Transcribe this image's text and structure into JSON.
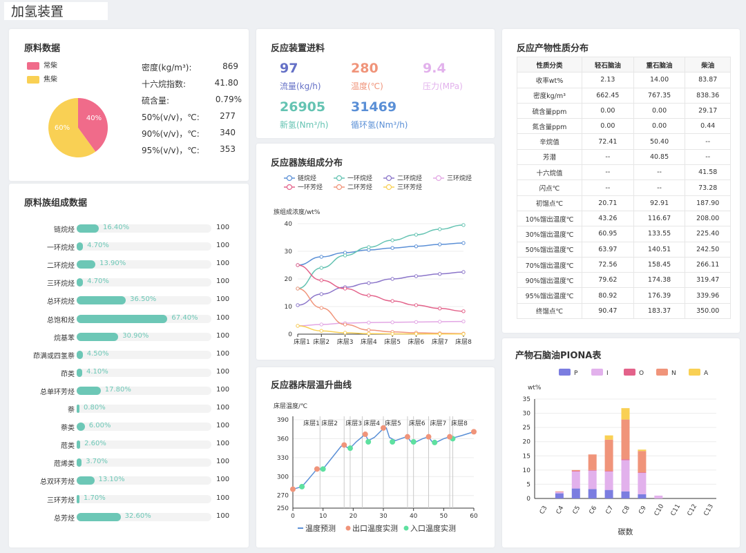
{
  "page_title": "加氢装置",
  "feed": {
    "title": "原料数据",
    "legend": [
      {
        "label": "常柴",
        "color": "#f06b8a"
      },
      {
        "label": "焦柴",
        "color": "#f9d054"
      }
    ],
    "pie": [
      {
        "label": "40%",
        "value": 40,
        "color": "#f06b8a"
      },
      {
        "label": "60%",
        "value": 60,
        "color": "#f9d054"
      }
    ],
    "props": [
      {
        "label": "密度(kg/m³):",
        "value": "869"
      },
      {
        "label": "十六烷指数:",
        "value": "41.80"
      },
      {
        "label": "硫含量:",
        "value": "0.79%"
      },
      {
        "label": "50%(v/v)，℃:",
        "value": "277"
      },
      {
        "label": "90%(v/v)，℃:",
        "value": "340"
      },
      {
        "label": "95%(v/v)，℃:",
        "value": "353"
      }
    ]
  },
  "composition": {
    "title": "原料族组成数据",
    "rows": [
      {
        "name": "链烷烃",
        "pct": 16.4,
        "pct_label": "16.40%",
        "max": "100"
      },
      {
        "name": "一环烷烃",
        "pct": 4.7,
        "pct_label": "4.70%",
        "max": "100"
      },
      {
        "name": "二环烷烃",
        "pct": 13.9,
        "pct_label": "13.90%",
        "max": "100"
      },
      {
        "name": "三环烷烃",
        "pct": 4.7,
        "pct_label": "4.70%",
        "max": "100"
      },
      {
        "name": "总环烷烃",
        "pct": 36.5,
        "pct_label": "36.50%",
        "max": "100"
      },
      {
        "name": "总饱和烃",
        "pct": 67.4,
        "pct_label": "67.40%",
        "max": "100"
      },
      {
        "name": "烷基苯",
        "pct": 30.9,
        "pct_label": "30.90%",
        "max": "100"
      },
      {
        "name": "茚满或四氢萘",
        "pct": 4.5,
        "pct_label": "4.50%",
        "max": "100"
      },
      {
        "name": "茚类",
        "pct": 4.1,
        "pct_label": "4.10%",
        "max": "100"
      },
      {
        "name": "总单环芳烃",
        "pct": 17.8,
        "pct_label": "17.80%",
        "max": "100"
      },
      {
        "name": "萘",
        "pct": 0.8,
        "pct_label": "0.80%",
        "max": "100"
      },
      {
        "name": "萘类",
        "pct": 6.0,
        "pct_label": "6.00%",
        "max": "100"
      },
      {
        "name": "苊类",
        "pct": 2.6,
        "pct_label": "2.60%",
        "max": "100"
      },
      {
        "name": "苊烯类",
        "pct": 3.7,
        "pct_label": "3.70%",
        "max": "100"
      },
      {
        "name": "总双环芳烃",
        "pct": 13.1,
        "pct_label": "13.10%",
        "max": "100"
      },
      {
        "name": "三环芳烃",
        "pct": 1.7,
        "pct_label": "1.70%",
        "max": "100"
      },
      {
        "name": "总芳烃",
        "pct": 32.6,
        "pct_label": "32.60%",
        "max": "100"
      }
    ]
  },
  "reactor_feed": {
    "title": "反应装置进料",
    "metrics": [
      {
        "value": "97",
        "label": "流量(kg/h)",
        "color": "#6470c6"
      },
      {
        "value": "280",
        "label": "温度(℃)",
        "color": "#f0947a"
      },
      {
        "value": "9.4",
        "label": "压力(MPa)",
        "color": "#e2b1ec"
      },
      {
        "value": "26905",
        "label": "新氢(Nm³/h)",
        "color": "#64c3b2"
      },
      {
        "value": "31469",
        "label": "循环氢(Nm³/h)",
        "color": "#5a8fd6"
      }
    ]
  },
  "product_props": {
    "title": "反应产物性质分布",
    "headers": [
      "性质分类",
      "轻石脑油",
      "重石脑油",
      "柴油"
    ],
    "rows": [
      [
        "收率wt%",
        "2.13",
        "14.00",
        "83.87"
      ],
      [
        "密度kg/m³",
        "662.45",
        "767.35",
        "838.36"
      ],
      [
        "硫含量ppm",
        "0.00",
        "0.00",
        "29.17"
      ],
      [
        "氮含量ppm",
        "0.00",
        "0.00",
        "0.44"
      ],
      [
        "辛烷值",
        "72.41",
        "50.40",
        "--"
      ],
      [
        "芳潜",
        "--",
        "40.85",
        "--"
      ],
      [
        "十六烷值",
        "--",
        "--",
        "41.58"
      ],
      [
        "闪点℃",
        "--",
        "--",
        "73.28"
      ],
      [
        "初馏点℃",
        "20.71",
        "92.91",
        "187.90"
      ],
      [
        "10%馏出温度℃",
        "43.26",
        "116.67",
        "208.00"
      ],
      [
        "30%馏出温度℃",
        "60.95",
        "133.55",
        "225.40"
      ],
      [
        "50%馏出温度℃",
        "63.97",
        "140.51",
        "242.50"
      ],
      [
        "70%馏出温度℃",
        "72.56",
        "158.45",
        "266.11"
      ],
      [
        "90%馏出温度℃",
        "79.62",
        "174.38",
        "319.47"
      ],
      [
        "95%馏出温度℃",
        "80.92",
        "176.39",
        "339.96"
      ],
      [
        "终馏点℃",
        "90.47",
        "183.37",
        "350.00"
      ]
    ]
  },
  "chart_data": [
    {
      "type": "line",
      "title": "反应器族组成分布",
      "ylabel": "族组成浓度/wt%",
      "ylim": [
        0,
        40
      ],
      "yticks": [
        "0",
        "10",
        "20",
        "30",
        "40"
      ],
      "categories": [
        "床层1",
        "床层2",
        "床层3",
        "床层4",
        "床层5",
        "床层6",
        "床层7",
        "床层8"
      ],
      "series": [
        {
          "name": "链烷烃",
          "color": "#5a8fd6",
          "values": [
            25,
            28,
            29.5,
            30.5,
            31.2,
            31.8,
            32.5,
            33
          ]
        },
        {
          "name": "一环烷烃",
          "color": "#64c3b2",
          "values": [
            16.5,
            24,
            28.5,
            31.5,
            34,
            36,
            38,
            39.5
          ]
        },
        {
          "name": "二环烷烃",
          "color": "#8a74c9",
          "values": [
            10.5,
            14.5,
            17,
            18.5,
            20,
            21,
            21.8,
            22.5
          ]
        },
        {
          "name": "三环烷烃",
          "color": "#e2a6e4",
          "values": [
            3,
            3.5,
            4,
            4.2,
            4.3,
            4.4,
            4.5,
            4.6
          ]
        },
        {
          "name": "一环芳烃",
          "color": "#e3628a",
          "values": [
            25,
            19.5,
            16.5,
            14,
            12,
            10.5,
            9.3,
            8.3
          ]
        },
        {
          "name": "二环芳烃",
          "color": "#f0947a",
          "values": [
            16.5,
            9.5,
            3.5,
            1.5,
            0.8,
            0.5,
            0.3,
            0.2
          ]
        },
        {
          "name": "三环芳烃",
          "color": "#f9d054",
          "values": [
            3,
            1.2,
            0.5,
            0.2,
            0.1,
            0.1,
            0.05,
            0.05
          ]
        }
      ]
    },
    {
      "type": "line",
      "title": "反应器床层温升曲线",
      "ylabel": "床层温度/℃",
      "ylim": [
        250,
        390
      ],
      "xlim": [
        0,
        60
      ],
      "yticks": [
        250,
        270,
        300,
        330,
        360,
        390
      ],
      "xticks": [
        0,
        10,
        20,
        30,
        40,
        50,
        60
      ],
      "beds": [
        {
          "label": "床层1",
          "x": 3
        },
        {
          "label": "床层2",
          "x": 9
        },
        {
          "label": "床层3",
          "x": 17
        },
        {
          "label": "床层4",
          "x": 23
        },
        {
          "label": "床层5",
          "x": 30
        },
        {
          "label": "床层6",
          "x": 38
        },
        {
          "label": "床层7",
          "x": 45
        },
        {
          "label": "床层8",
          "x": 52
        }
      ],
      "bed_lines": [
        9,
        17,
        19,
        23,
        30,
        38,
        40,
        45,
        52,
        53
      ],
      "series": [
        {
          "name": "温度预测",
          "color": "#5a8fd6",
          "points": [
            [
              0,
              280
            ],
            [
              3,
              284
            ],
            [
              5,
              295
            ],
            [
              8,
              312
            ],
            [
              10,
              312
            ],
            [
              13,
              330
            ],
            [
              16,
              348
            ],
            [
              17,
              350
            ],
            [
              18,
              346
            ],
            [
              19,
              345
            ],
            [
              21,
              355
            ],
            [
              23,
              363
            ],
            [
              24,
              367
            ],
            [
              25,
              357
            ],
            [
              27,
              362
            ],
            [
              30,
              376
            ],
            [
              31,
              377
            ],
            [
              32,
              362
            ],
            [
              34,
              357
            ],
            [
              37,
              362
            ],
            [
              38,
              363
            ],
            [
              39,
              356
            ],
            [
              40,
              353
            ],
            [
              43,
              360
            ],
            [
              45,
              363
            ],
            [
              46,
              356
            ],
            [
              47,
              353
            ],
            [
              50,
              360
            ],
            [
              52,
              363
            ],
            [
              53,
              361
            ],
            [
              56,
              365
            ],
            [
              60,
              371
            ]
          ]
        },
        {
          "name": "出口温度实测",
          "color": "#f0947a",
          "points": [
            [
              0,
              280
            ],
            [
              8,
              312
            ],
            [
              17,
              350
            ],
            [
              24,
              367
            ],
            [
              30,
              377
            ],
            [
              38,
              363
            ],
            [
              45,
              363
            ],
            [
              52,
              363
            ],
            [
              60,
              371
            ]
          ]
        },
        {
          "name": "入口温度实测",
          "color": "#5ee0a0",
          "points": [
            [
              3,
              284
            ],
            [
              10,
              312
            ],
            [
              19,
              345
            ],
            [
              25,
              355
            ],
            [
              33,
              355
            ],
            [
              40,
              355
            ],
            [
              47,
              354
            ],
            [
              53,
              360
            ]
          ]
        }
      ]
    },
    {
      "type": "bar",
      "stacked": true,
      "title": "产物石脑油PIONA表",
      "ylabel": "wt%",
      "xlabel": "碳数",
      "ylim": [
        0,
        35
      ],
      "yticks": [
        0,
        5,
        10,
        15,
        20,
        25,
        30,
        35
      ],
      "categories": [
        "C3",
        "C4",
        "C5",
        "C6",
        "C7",
        "C8",
        "C9",
        "C10",
        "C11",
        "C12",
        "C13"
      ],
      "series": [
        {
          "name": "P",
          "color": "#7b7de0",
          "values": [
            0,
            1.8,
            3.5,
            3.3,
            3.0,
            2.5,
            1.5,
            0,
            0,
            0,
            0
          ]
        },
        {
          "name": "I",
          "color": "#e2b1ec",
          "values": [
            0,
            0.5,
            6.0,
            6.5,
            6.5,
            11.0,
            7.5,
            1.0,
            0,
            0,
            0
          ]
        },
        {
          "name": "O",
          "color": "#e3628a",
          "values": [
            0,
            0,
            0.2,
            0.2,
            0.2,
            0.3,
            0.2,
            0,
            0,
            0,
            0
          ]
        },
        {
          "name": "N",
          "color": "#f0947a",
          "values": [
            0,
            0.2,
            0.3,
            5.5,
            11.0,
            14.0,
            7.5,
            0,
            0,
            0,
            0
          ]
        },
        {
          "name": "A",
          "color": "#f9d054",
          "values": [
            0,
            0,
            0,
            0,
            1.5,
            4.0,
            0.5,
            0,
            0,
            0,
            0
          ]
        }
      ]
    }
  ]
}
